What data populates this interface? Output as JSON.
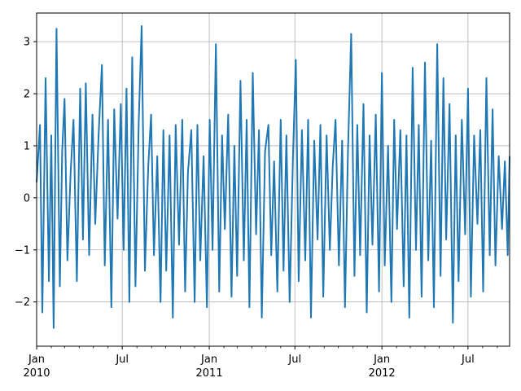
{
  "chart_data": {
    "type": "line",
    "title": "",
    "xlabel": "",
    "ylabel": "",
    "x_range": [
      "2010-01-01",
      "2012-09-27"
    ],
    "ylim": [
      -2.85,
      3.55
    ],
    "grid": true,
    "line_color": "#1f77b4",
    "grid_color": "#b0b0b0",
    "yticks": [
      {
        "value": 3,
        "label": "3"
      },
      {
        "value": 2,
        "label": "2"
      },
      {
        "value": 1,
        "label": "1"
      },
      {
        "value": 0,
        "label": "0"
      },
      {
        "value": -1,
        "label": "−1"
      },
      {
        "value": -2,
        "label": "−2"
      }
    ],
    "xticks_major": [
      {
        "date": "2010-01-01",
        "label": "Jan",
        "year": "2010"
      },
      {
        "date": "2010-07-01",
        "label": "Jul",
        "year": ""
      },
      {
        "date": "2011-01-01",
        "label": "Jan",
        "year": "2011"
      },
      {
        "date": "2011-07-01",
        "label": "Jul",
        "year": ""
      },
      {
        "date": "2012-01-01",
        "label": "Jan",
        "year": "2012"
      },
      {
        "date": "2012-07-01",
        "label": "Jul",
        "year": ""
      }
    ],
    "series": [
      {
        "x": [
          "2010-01-01",
          "2010-01-08",
          "2010-01-13",
          "2010-01-20",
          "2010-01-27",
          "2010-02-01",
          "2010-02-06",
          "2010-02-12",
          "2010-02-19",
          "2010-02-24",
          "2010-03-01",
          "2010-03-07",
          "2010-03-14",
          "2010-03-20",
          "2010-03-27",
          "2010-04-03",
          "2010-04-09",
          "2010-04-15",
          "2010-04-22",
          "2010-04-29",
          "2010-05-05",
          "2010-05-12",
          "2010-05-19",
          "2010-05-25",
          "2010-06-01",
          "2010-06-08",
          "2010-06-14",
          "2010-06-21",
          "2010-06-28",
          "2010-07-04",
          "2010-07-10",
          "2010-07-16",
          "2010-07-22",
          "2010-07-29",
          "2010-08-05",
          "2010-08-11",
          "2010-08-18",
          "2010-08-25",
          "2010-08-31",
          "2010-09-06",
          "2010-09-13",
          "2010-09-20",
          "2010-09-26",
          "2010-10-02",
          "2010-10-09",
          "2010-10-16",
          "2010-10-22",
          "2010-10-29",
          "2010-11-05",
          "2010-11-11",
          "2010-11-17",
          "2010-11-24",
          "2010-12-01",
          "2010-12-07",
          "2010-12-13",
          "2010-12-20",
          "2010-12-27",
          "2011-01-02",
          "2011-01-08",
          "2011-01-15",
          "2011-01-22",
          "2011-01-28",
          "2011-02-03",
          "2011-02-10",
          "2011-02-17",
          "2011-02-23",
          "2011-03-01",
          "2011-03-08",
          "2011-03-15",
          "2011-03-21",
          "2011-03-27",
          "2011-04-03",
          "2011-04-10",
          "2011-04-16",
          "2011-04-22",
          "2011-04-29",
          "2011-05-06",
          "2011-05-12",
          "2011-05-18",
          "2011-05-25",
          "2011-06-01",
          "2011-06-07",
          "2011-06-13",
          "2011-06-20",
          "2011-06-27",
          "2011-07-03",
          "2011-07-09",
          "2011-07-16",
          "2011-07-23",
          "2011-07-29",
          "2011-08-04",
          "2011-08-11",
          "2011-08-18",
          "2011-08-24",
          "2011-08-30",
          "2011-09-06",
          "2011-09-13",
          "2011-09-19",
          "2011-09-25",
          "2011-10-02",
          "2011-10-09",
          "2011-10-15",
          "2011-10-21",
          "2011-10-28",
          "2011-11-04",
          "2011-11-10",
          "2011-11-16",
          "2011-11-23",
          "2011-11-30",
          "2011-12-06",
          "2011-12-12",
          "2011-12-19",
          "2011-12-26",
          "2012-01-01",
          "2012-01-07",
          "2012-01-14",
          "2012-01-21",
          "2012-01-27",
          "2012-02-02",
          "2012-02-09",
          "2012-02-16",
          "2012-02-22",
          "2012-02-28",
          "2012-03-06",
          "2012-03-13",
          "2012-03-19",
          "2012-03-25",
          "2012-04-01",
          "2012-04-08",
          "2012-04-14",
          "2012-04-20",
          "2012-04-27",
          "2012-05-04",
          "2012-05-10",
          "2012-05-16",
          "2012-05-23",
          "2012-05-30",
          "2012-06-05",
          "2012-06-11",
          "2012-06-18",
          "2012-06-25",
          "2012-07-01",
          "2012-07-07",
          "2012-07-14",
          "2012-07-21",
          "2012-07-27",
          "2012-08-02",
          "2012-08-09",
          "2012-08-16",
          "2012-08-22",
          "2012-08-28",
          "2012-09-04",
          "2012-09-11",
          "2012-09-17",
          "2012-09-23",
          "2012-09-27"
        ],
        "y": [
          0.3,
          1.4,
          -2.2,
          2.3,
          -1.6,
          1.2,
          -2.5,
          3.25,
          -1.7,
          0.9,
          1.9,
          -1.2,
          0.5,
          1.5,
          -1.6,
          2.1,
          -0.8,
          2.2,
          -1.1,
          1.6,
          -0.5,
          1.2,
          2.55,
          -1.3,
          1.5,
          -2.1,
          1.7,
          -0.4,
          1.8,
          -1.0,
          2.1,
          -2.0,
          2.7,
          -1.7,
          1.5,
          3.3,
          -1.4,
          0.6,
          1.6,
          -1.1,
          0.8,
          -2.0,
          1.3,
          -1.4,
          1.2,
          -2.3,
          1.4,
          -0.9,
          1.5,
          -1.8,
          0.5,
          1.3,
          -2.0,
          1.4,
          -1.2,
          0.8,
          -2.1,
          1.5,
          -1.0,
          2.95,
          -1.8,
          1.2,
          -0.6,
          1.6,
          -1.9,
          1.0,
          -1.5,
          2.25,
          -1.2,
          1.5,
          -2.1,
          2.4,
          -0.7,
          1.3,
          -2.3,
          0.9,
          1.4,
          -1.1,
          0.7,
          -1.8,
          1.5,
          -1.4,
          1.2,
          -2.0,
          0.8,
          2.65,
          -1.6,
          1.3,
          -1.2,
          1.5,
          -2.3,
          1.1,
          -0.8,
          1.4,
          -1.9,
          1.2,
          -1.0,
          0.6,
          1.5,
          -1.3,
          1.1,
          -2.1,
          0.8,
          3.15,
          -1.5,
          1.4,
          -1.1,
          1.8,
          -2.2,
          1.2,
          -0.9,
          1.6,
          -1.8,
          2.4,
          -1.3,
          1.0,
          -2.0,
          1.5,
          -0.6,
          1.3,
          -1.7,
          1.2,
          -2.3,
          2.5,
          -1.0,
          1.4,
          -1.9,
          2.6,
          -1.2,
          1.1,
          -2.1,
          2.95,
          -1.5,
          2.3,
          -0.8,
          1.8,
          -2.4,
          1.2,
          -1.6,
          1.5,
          -0.7,
          2.1,
          -1.9,
          1.2,
          -0.5,
          1.3,
          -1.8,
          2.3,
          -1.1,
          1.7,
          -1.3,
          0.8,
          -0.6,
          0.7,
          -1.1,
          0.8
        ]
      }
    ]
  }
}
